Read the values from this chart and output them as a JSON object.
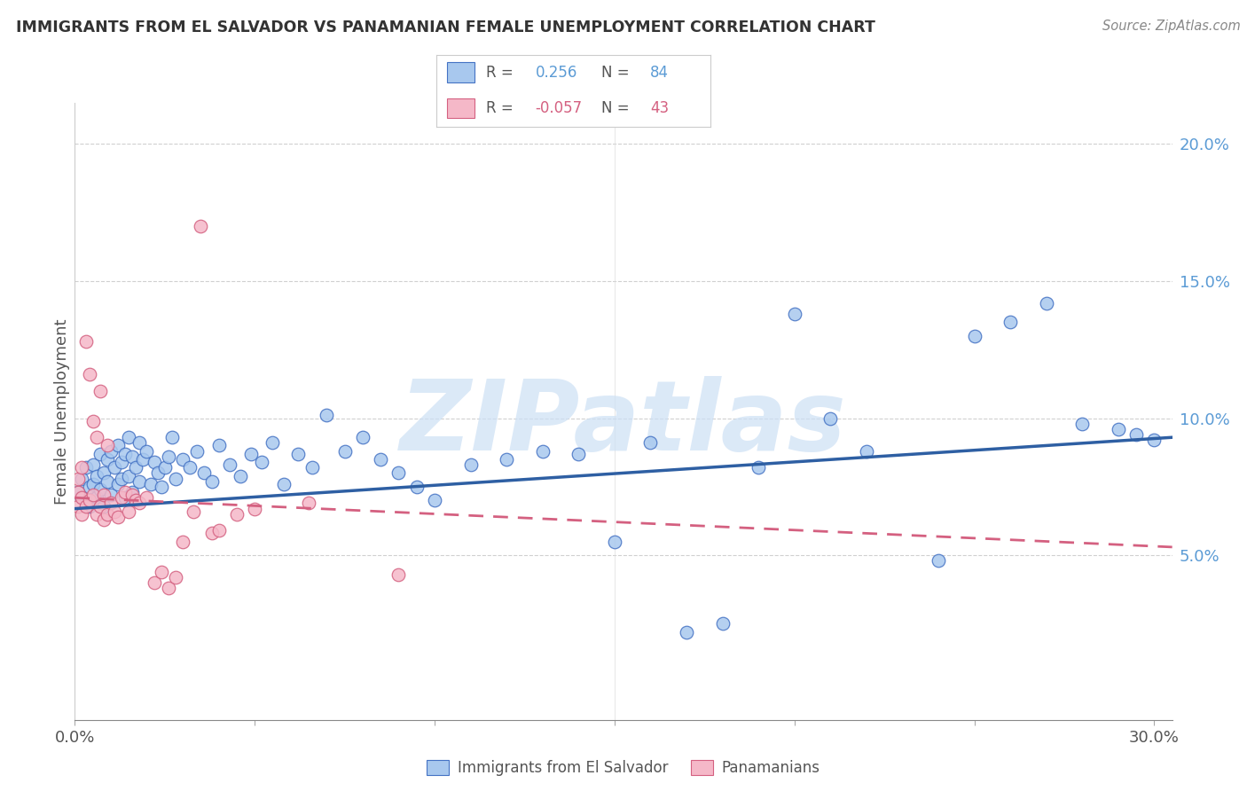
{
  "title": "IMMIGRANTS FROM EL SALVADOR VS PANAMANIAN FEMALE UNEMPLOYMENT CORRELATION CHART",
  "source": "Source: ZipAtlas.com",
  "ylabel": "Female Unemployment",
  "xlim": [
    0.0,
    0.305
  ],
  "ylim": [
    -0.01,
    0.215
  ],
  "xtick_positions": [
    0.0,
    0.05,
    0.1,
    0.15,
    0.2,
    0.25,
    0.3
  ],
  "xtick_labels": [
    "0.0%",
    "",
    "",
    "",
    "",
    "",
    "30.0%"
  ],
  "ytick_positions": [
    0.05,
    0.1,
    0.15,
    0.2
  ],
  "ytick_labels": [
    "5.0%",
    "10.0%",
    "15.0%",
    "20.0%"
  ],
  "series1_color": "#a8c8ee",
  "series1_edge": "#4472c4",
  "series2_color": "#f5b8c8",
  "series2_edge": "#d46080",
  "trendline1_color": "#2e5fa3",
  "trendline2_color": "#d46080",
  "watermark_text": "ZIPatlas",
  "watermark_color": "#cce0f5",
  "legend_r1": " 0.256",
  "legend_n1": "84",
  "legend_r2": "-0.057",
  "legend_n2": "43",
  "blue_scatter_x": [
    0.001,
    0.002,
    0.002,
    0.003,
    0.003,
    0.004,
    0.004,
    0.005,
    0.005,
    0.006,
    0.006,
    0.007,
    0.007,
    0.008,
    0.008,
    0.009,
    0.009,
    0.01,
    0.01,
    0.011,
    0.012,
    0.012,
    0.013,
    0.013,
    0.014,
    0.014,
    0.015,
    0.015,
    0.016,
    0.016,
    0.017,
    0.018,
    0.018,
    0.019,
    0.02,
    0.021,
    0.022,
    0.023,
    0.024,
    0.025,
    0.026,
    0.027,
    0.028,
    0.03,
    0.032,
    0.034,
    0.036,
    0.038,
    0.04,
    0.043,
    0.046,
    0.049,
    0.052,
    0.055,
    0.058,
    0.062,
    0.066,
    0.07,
    0.075,
    0.08,
    0.085,
    0.09,
    0.095,
    0.1,
    0.11,
    0.12,
    0.13,
    0.14,
    0.15,
    0.16,
    0.17,
    0.18,
    0.19,
    0.2,
    0.21,
    0.22,
    0.24,
    0.25,
    0.26,
    0.27,
    0.28,
    0.29,
    0.295,
    0.3
  ],
  "blue_scatter_y": [
    0.073,
    0.071,
    0.078,
    0.069,
    0.082,
    0.075,
    0.068,
    0.076,
    0.083,
    0.071,
    0.079,
    0.074,
    0.087,
    0.068,
    0.08,
    0.077,
    0.085,
    0.072,
    0.088,
    0.082,
    0.076,
    0.09,
    0.078,
    0.084,
    0.071,
    0.087,
    0.079,
    0.093,
    0.073,
    0.086,
    0.082,
    0.077,
    0.091,
    0.085,
    0.088,
    0.076,
    0.084,
    0.08,
    0.075,
    0.082,
    0.086,
    0.093,
    0.078,
    0.085,
    0.082,
    0.088,
    0.08,
    0.077,
    0.09,
    0.083,
    0.079,
    0.087,
    0.084,
    0.091,
    0.076,
    0.087,
    0.082,
    0.101,
    0.088,
    0.093,
    0.085,
    0.08,
    0.075,
    0.07,
    0.083,
    0.085,
    0.088,
    0.087,
    0.055,
    0.091,
    0.022,
    0.025,
    0.082,
    0.138,
    0.1,
    0.088,
    0.048,
    0.13,
    0.135,
    0.142,
    0.098,
    0.096,
    0.094,
    0.092
  ],
  "pink_scatter_x": [
    0.001,
    0.001,
    0.001,
    0.002,
    0.002,
    0.002,
    0.003,
    0.003,
    0.004,
    0.004,
    0.005,
    0.005,
    0.006,
    0.006,
    0.007,
    0.007,
    0.008,
    0.008,
    0.009,
    0.009,
    0.01,
    0.011,
    0.012,
    0.013,
    0.014,
    0.015,
    0.016,
    0.017,
    0.018,
    0.02,
    0.022,
    0.024,
    0.026,
    0.028,
    0.03,
    0.033,
    0.035,
    0.038,
    0.04,
    0.045,
    0.05,
    0.065,
    0.09
  ],
  "pink_scatter_y": [
    0.073,
    0.068,
    0.078,
    0.071,
    0.065,
    0.082,
    0.128,
    0.068,
    0.116,
    0.07,
    0.099,
    0.072,
    0.093,
    0.065,
    0.11,
    0.068,
    0.063,
    0.072,
    0.09,
    0.065,
    0.069,
    0.066,
    0.064,
    0.071,
    0.073,
    0.066,
    0.072,
    0.07,
    0.069,
    0.071,
    0.04,
    0.044,
    0.038,
    0.042,
    0.055,
    0.066,
    0.17,
    0.058,
    0.059,
    0.065,
    0.067,
    0.069,
    0.043
  ],
  "trendline1_x": [
    0.0,
    0.305
  ],
  "trendline1_y": [
    0.067,
    0.093
  ],
  "trendline2_x": [
    0.0,
    0.305
  ],
  "trendline2_y": [
    0.071,
    0.053
  ]
}
